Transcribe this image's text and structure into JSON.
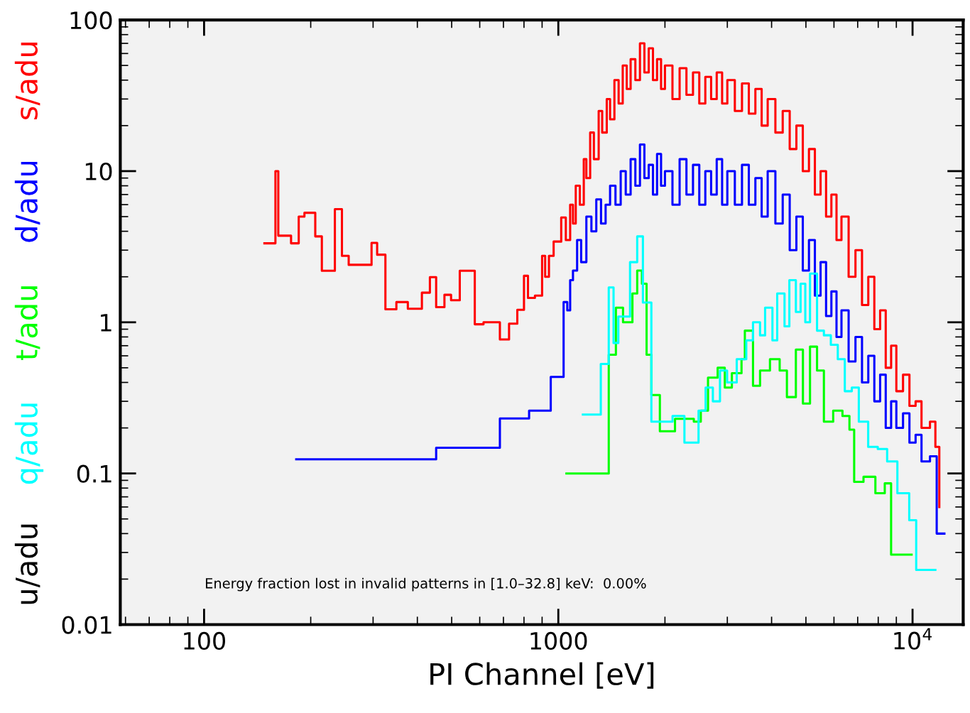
{
  "chart_data": {
    "type": "step",
    "xlabel": "PI Channel [eV]",
    "log": "xy",
    "grid": false,
    "legend": false,
    "xlim": [
      58,
      13900
    ],
    "ylim": [
      0.01,
      100
    ],
    "xticks": [
      100,
      1000,
      {
        "value": 10000,
        "label": "10$^{4}$"
      }
    ],
    "yticks": [
      0.01,
      0.1,
      1,
      10,
      100
    ],
    "annotations": [
      "Energy fraction lost in invalid patterns in [1.0–32.8] keV:  0.00%"
    ],
    "series": [
      {
        "name": "s/adu",
        "color": "#ff0000",
        "x": [
          148,
          159,
          162,
          176,
          185,
          192,
          206,
          215,
          234,
          245,
          256,
          297,
          308,
          325,
          349,
          376,
          412,
          434,
          452,
          477,
          498,
          527,
          581,
          615,
          684,
          726,
          766,
          800,
          821,
          859,
          900,
          918,
          941,
          970,
          1019,
          1050,
          1080,
          1100,
          1120,
          1150,
          1180,
          1200,
          1230,
          1260,
          1300,
          1330,
          1370,
          1400,
          1440,
          1480,
          1520,
          1560,
          1600,
          1650,
          1700,
          1750,
          1800,
          1850,
          1900,
          1950,
          2000,
          2100,
          2200,
          2300,
          2400,
          2500,
          2600,
          2700,
          2800,
          2900,
          3000,
          3150,
          3300,
          3450,
          3600,
          3750,
          3900,
          4100,
          4300,
          4500,
          4700,
          4900,
          5100,
          5300,
          5500,
          5700,
          5900,
          6100,
          6300,
          6600,
          6900,
          7200,
          7500,
          7800,
          8100,
          8400,
          8700,
          9000,
          9400,
          9800,
          10200,
          10600,
          11200,
          11600,
          11900
        ],
        "values": [
          3.33,
          10.0,
          3.74,
          3.33,
          5.0,
          5.3,
          3.7,
          2.19,
          5.6,
          2.75,
          2.4,
          3.35,
          2.8,
          1.22,
          1.36,
          1.23,
          1.57,
          1.99,
          1.26,
          1.52,
          1.4,
          2.19,
          0.97,
          1.0,
          0.77,
          0.98,
          1.21,
          2.03,
          1.45,
          1.5,
          2.75,
          2.0,
          2.75,
          3.42,
          4.93,
          3.5,
          6,
          4.5,
          8,
          6,
          12,
          9,
          18,
          12,
          25,
          18,
          30,
          22,
          40,
          28,
          50,
          35,
          55,
          40,
          70,
          45,
          65,
          40,
          55,
          35,
          50,
          30,
          48,
          32,
          45,
          28,
          42,
          30,
          45,
          28,
          40,
          25,
          38,
          24,
          35,
          20,
          30,
          18,
          25,
          14,
          20,
          10,
          14,
          7,
          10,
          5,
          7,
          3.5,
          5,
          2,
          3,
          1.3,
          2,
          0.9,
          1.2,
          0.5,
          0.7,
          0.35,
          0.45,
          0.28,
          0.3,
          0.2,
          0.22,
          0.15,
          0.06
        ]
      },
      {
        "name": "d/adu",
        "color": "#0000ff",
        "x": [
          182,
          452,
          684,
          827,
          952,
          1035,
          1060,
          1080,
          1100,
          1130,
          1160,
          1200,
          1240,
          1280,
          1320,
          1360,
          1400,
          1450,
          1500,
          1550,
          1600,
          1650,
          1700,
          1750,
          1800,
          1850,
          1900,
          1950,
          2000,
          2100,
          2200,
          2300,
          2400,
          2500,
          2600,
          2700,
          2800,
          2900,
          3000,
          3150,
          3300,
          3450,
          3600,
          3750,
          3900,
          4100,
          4300,
          4500,
          4700,
          4900,
          5100,
          5300,
          5500,
          5700,
          5900,
          6100,
          6300,
          6600,
          6900,
          7200,
          7500,
          7800,
          8100,
          8400,
          8700,
          9000,
          9400,
          9800,
          10200,
          10600,
          11200,
          11700,
          12300
        ],
        "values": [
          0.124,
          0.148,
          0.231,
          0.26,
          0.435,
          1.36,
          1.2,
          1.9,
          2.2,
          3.5,
          2.5,
          5,
          4,
          6.5,
          4.5,
          6,
          8,
          6,
          10,
          7,
          12,
          8,
          15,
          9,
          11,
          7,
          13,
          8,
          10,
          6,
          12,
          7,
          11,
          6,
          10,
          7,
          12,
          6,
          10,
          6,
          11,
          6,
          9,
          5,
          10,
          4.5,
          7,
          3,
          5,
          2.2,
          3.5,
          1.5,
          2.5,
          1.1,
          1.6,
          0.8,
          1.2,
          0.55,
          0.8,
          0.4,
          0.6,
          0.3,
          0.45,
          0.2,
          0.3,
          0.2,
          0.25,
          0.16,
          0.18,
          0.12,
          0.13,
          0.04,
          0.04
        ]
      },
      {
        "name": "t/adu",
        "color": "#00ff00",
        "x": [
          1054,
          1388,
          1454,
          1523,
          1619,
          1670,
          1722,
          1775,
          1831,
          1935,
          2135,
          2413,
          2525,
          2646,
          2817,
          2951,
          3090,
          3290,
          3362,
          3545,
          3711,
          3958,
          4216,
          4419,
          4684,
          4904,
          5135,
          5375,
          5620,
          5970,
          6341,
          6635,
          6842,
          7270,
          7854,
          8348,
          8698,
          9941
        ],
        "values": [
          0.1,
          0.61,
          1.25,
          1.0,
          1.55,
          2.2,
          1.8,
          0.61,
          0.33,
          0.19,
          0.23,
          0.22,
          0.26,
          0.43,
          0.5,
          0.37,
          0.46,
          0.57,
          0.88,
          0.38,
          0.48,
          0.57,
          0.48,
          0.32,
          0.66,
          0.29,
          0.69,
          0.48,
          0.22,
          0.26,
          0.24,
          0.195,
          0.088,
          0.095,
          0.074,
          0.086,
          0.029,
          0.029
        ]
      },
      {
        "name": "q/adu",
        "color": "#00ffff",
        "x": [
          1173,
          1318,
          1388,
          1432,
          1477,
          1594,
          1670,
          1733,
          1831,
          2101,
          2270,
          2488,
          2605,
          2731,
          2860,
          2995,
          3189,
          3393,
          3545,
          3711,
          3835,
          4022,
          4149,
          4351,
          4490,
          4684,
          4830,
          4980,
          5135,
          5375,
          5620,
          5879,
          6151,
          6438,
          6738,
          7052,
          7495,
          7977,
          8478,
          9061,
          9787,
          10240,
          11600
        ],
        "values": [
          0.245,
          0.53,
          1.7,
          0.73,
          1.09,
          2.5,
          3.7,
          1.35,
          0.22,
          0.24,
          0.16,
          0.26,
          0.37,
          0.3,
          0.48,
          0.4,
          0.57,
          0.76,
          1.0,
          0.82,
          1.25,
          0.76,
          1.55,
          0.94,
          1.9,
          1.17,
          1.8,
          1.0,
          2.1,
          0.88,
          0.82,
          0.71,
          0.57,
          0.35,
          0.37,
          0.22,
          0.15,
          0.145,
          0.12,
          0.074,
          0.049,
          0.023,
          0.023
        ]
      },
      {
        "name": "u/adu",
        "color": "#000000"
      }
    ]
  }
}
